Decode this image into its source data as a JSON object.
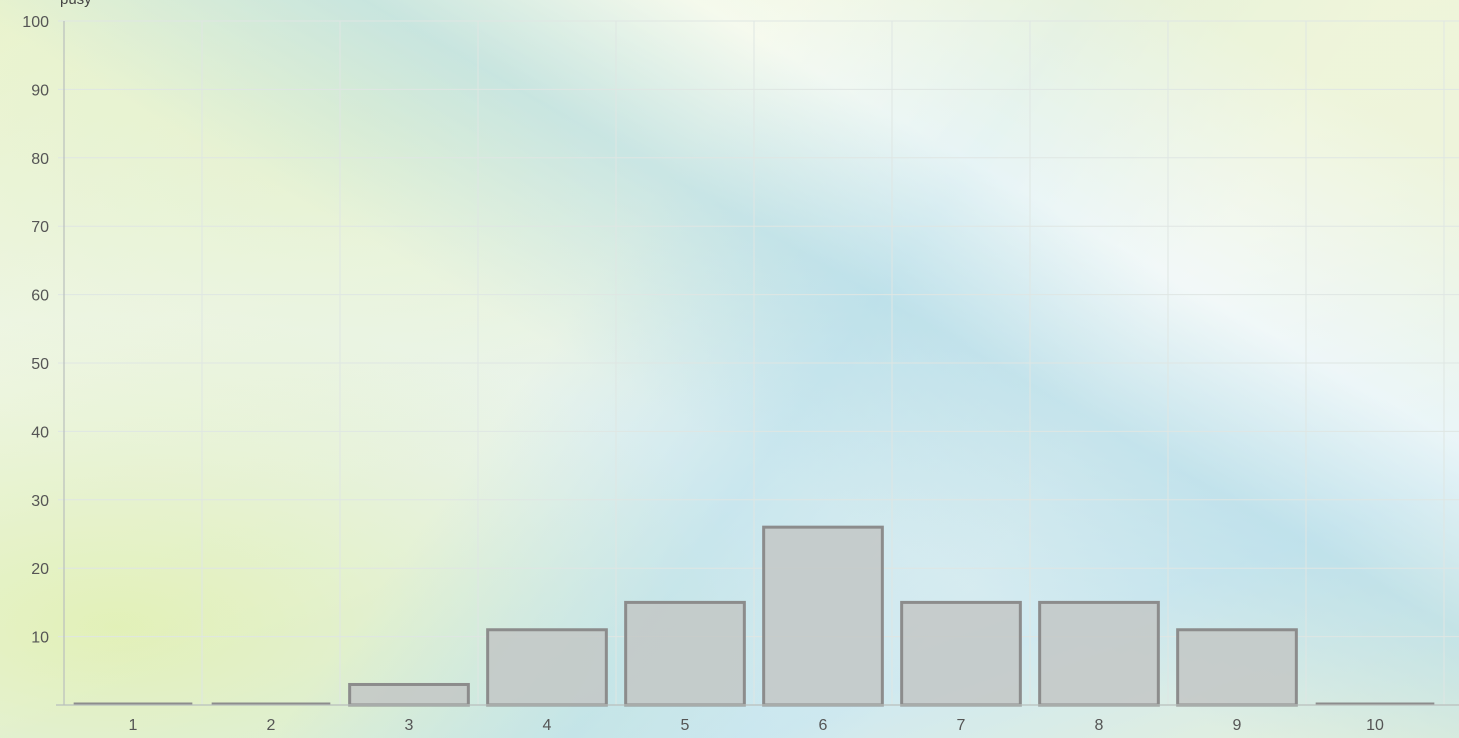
{
  "chart_data": {
    "type": "bar",
    "categories": [
      "1",
      "2",
      "3",
      "4",
      "5",
      "6",
      "7",
      "8",
      "9",
      "10"
    ],
    "values": [
      0,
      0,
      3,
      11,
      15,
      26,
      15,
      15,
      11,
      0
    ],
    "ylim": [
      0,
      100
    ],
    "yticks": [
      "10",
      "20",
      "30",
      "40",
      "50",
      "60",
      "70",
      "80",
      "90",
      "100"
    ],
    "grid": true,
    "colors": {
      "bar_fill": "#c3c7c6",
      "bar_stroke": "#8c8c8c",
      "grid": "#dfe6e3",
      "axis": "#b9bfbd",
      "tick_text": "#555555"
    }
  },
  "header": {
    "partial_text": "pusy"
  }
}
